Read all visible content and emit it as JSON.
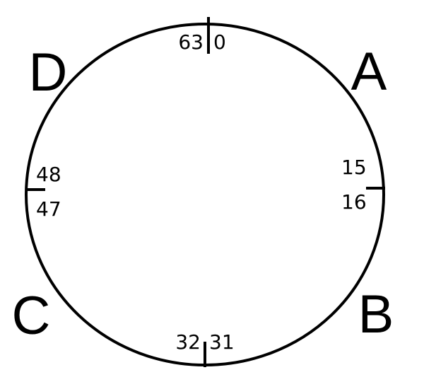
{
  "ring": {
    "stroke_color": "#000000",
    "background": "#ffffff"
  },
  "quadrants": {
    "a": "A",
    "b": "B",
    "c": "C",
    "d": "D"
  },
  "boundaries": {
    "top": {
      "left": "63",
      "right": "0"
    },
    "right": {
      "above": "15",
      "below": "16"
    },
    "bottom": {
      "left": "32",
      "right": "31"
    },
    "left": {
      "above": "48",
      "below": "47"
    }
  }
}
